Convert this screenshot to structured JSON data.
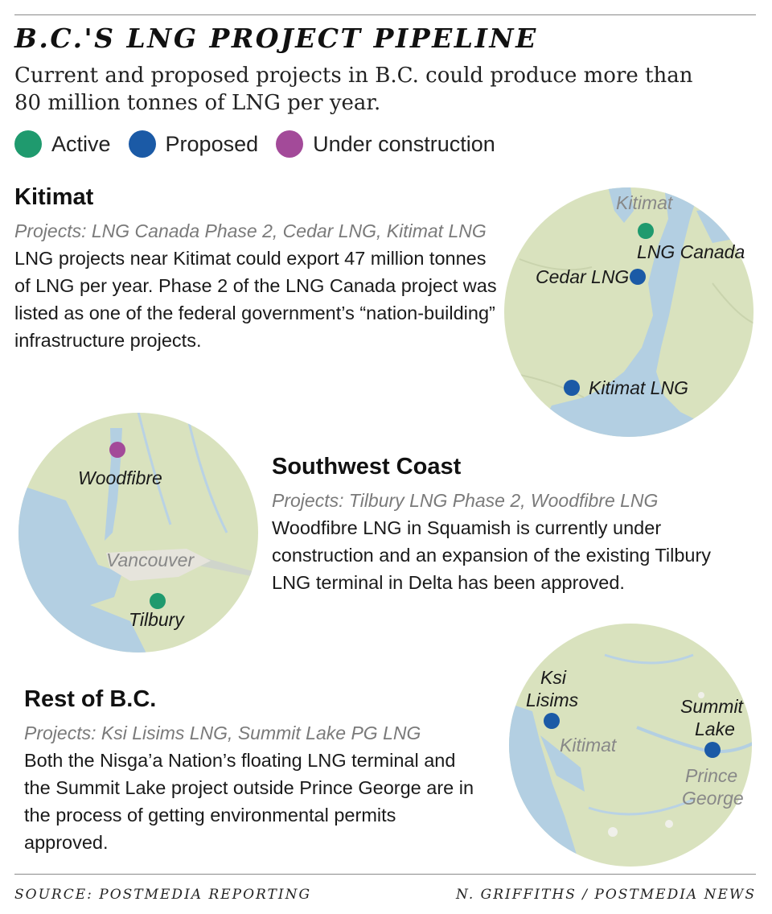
{
  "title": "B.C.'S LNG PROJECT PIPELINE",
  "subtitle": "Current and proposed projects in B.C. could produce more than 80 million tonnes of LNG per year.",
  "colors": {
    "active": "#1f9a6e",
    "proposed": "#1b5aa6",
    "under_construction": "#a34a99",
    "land": "#d9e2be",
    "water": "#b3cfe2"
  },
  "legend": [
    {
      "key": "active",
      "label": "Active"
    },
    {
      "key": "proposed",
      "label": "Proposed"
    },
    {
      "key": "under_construction",
      "label": "Under construction"
    }
  ],
  "regions": {
    "kitimat": {
      "name": "Kitimat",
      "projects": "Projects: LNG Canada Phase 2, Cedar LNG, Kitimat LNG",
      "description": "LNG projects near Kitimat could export 47 million tonnes of LNG per year. Phase 2 of the LNG Canada project was listed as one of the federal government’s “nation-building” infrastructure projects.",
      "map": {
        "place_label": "Kitimat",
        "markers": [
          {
            "label": "LNG Canada",
            "status": "active"
          },
          {
            "label": "Cedar LNG",
            "status": "proposed"
          },
          {
            "label": "Kitimat LNG",
            "status": "proposed"
          }
        ]
      }
    },
    "southwest": {
      "name": "Southwest Coast",
      "projects": "Projects: Tilbury LNG Phase 2, Woodfibre LNG",
      "description": "Woodfibre LNG in Squamish is currently under construction and an expansion of the existing Tilbury LNG terminal in Delta has been approved.",
      "map": {
        "place_label": "Vancouver",
        "markers": [
          {
            "label": "Woodfibre",
            "status": "under_construction"
          },
          {
            "label": "Tilbury",
            "status": "active"
          }
        ]
      }
    },
    "rest": {
      "name": "Rest of B.C.",
      "projects": "Projects: Ksi Lisims LNG, Summit Lake PG LNG",
      "description": "Both the Nisga’a Nation’s floating LNG terminal and the Summit Lake project outside Prince George are in the process of getting environmental permits approved.",
      "map": {
        "place_labels": [
          "Kitimat",
          "Prince George"
        ],
        "markers": [
          {
            "label": "Ksi Lisims",
            "status": "proposed"
          },
          {
            "label": "Summit Lake",
            "status": "proposed"
          }
        ]
      }
    }
  },
  "footer": {
    "source": "SOURCE: POSTMEDIA REPORTING",
    "credit": "N. GRIFFITHS / POSTMEDIA NEWS"
  }
}
